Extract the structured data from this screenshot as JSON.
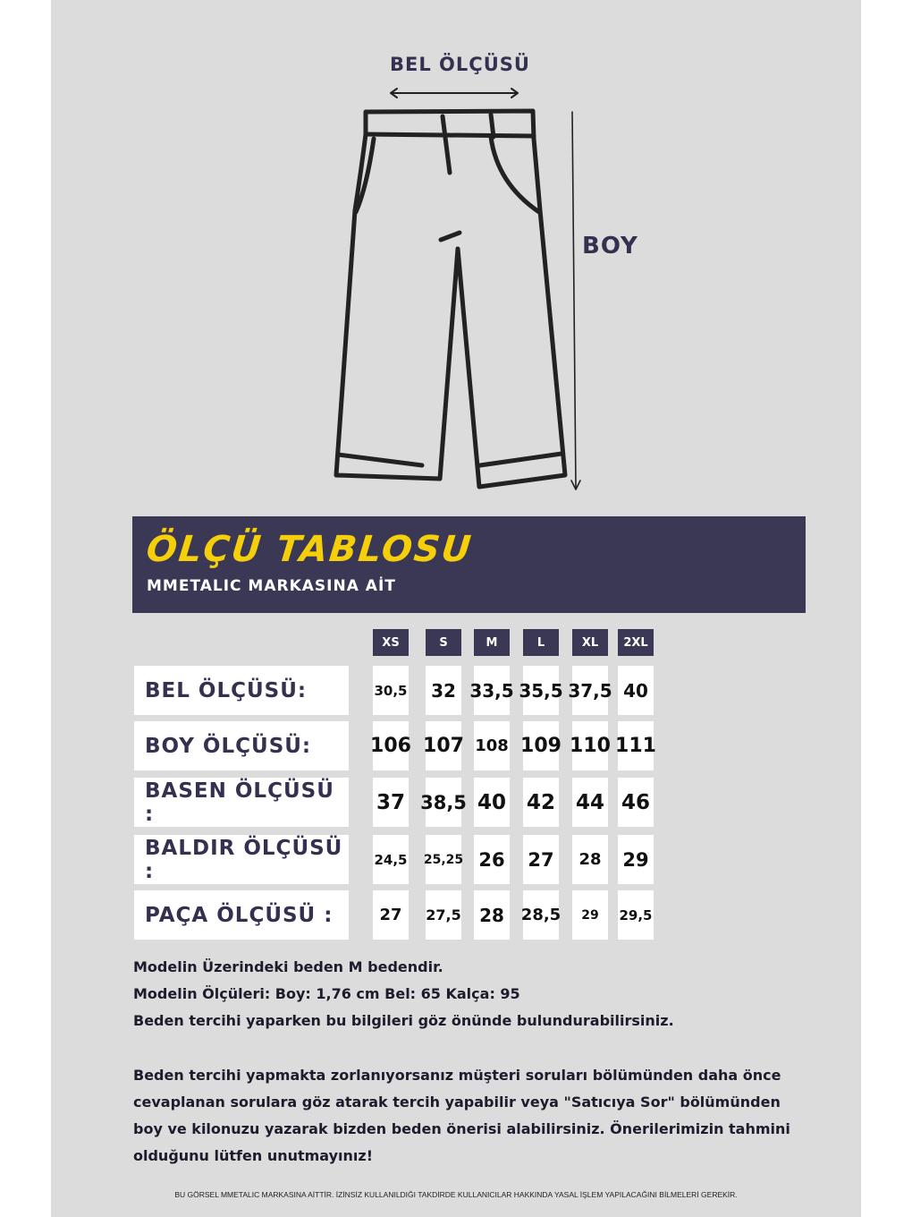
{
  "diagram": {
    "waist_label": "BEL ÖLÇÜSÜ",
    "length_label": "BOY"
  },
  "header": {
    "title": "ÖLÇÜ TABLOSU",
    "subtitle": "MMETALIC MARKASINA AİT"
  },
  "colors": {
    "accent": "#3b3856",
    "title": "#f5cf0a",
    "background": "#dcdcdc"
  },
  "table": {
    "sizes": [
      "XS",
      "S",
      "M",
      "L",
      "XL",
      "2XL"
    ],
    "rows": [
      {
        "label": "BEL ÖLÇÜSÜ:",
        "values": [
          "30,5",
          "32",
          "33,5",
          "35,5",
          "37,5",
          "40"
        ]
      },
      {
        "label": "BOY ÖLÇÜSÜ:",
        "values": [
          "106",
          "107",
          "108",
          "109",
          "110",
          "111"
        ]
      },
      {
        "label": "BASEN ÖLÇÜSÜ :",
        "values": [
          "37",
          "38,5",
          "40",
          "42",
          "44",
          "46"
        ]
      },
      {
        "label": "BALDIR ÖLÇÜSÜ :",
        "values": [
          "24,5",
          "25,25",
          "26",
          "27",
          "28",
          "29"
        ]
      },
      {
        "label": "PAÇA ÖLÇÜSÜ :",
        "values": [
          "27",
          "27,5",
          "28",
          "28,5",
          "29",
          "29,5"
        ]
      }
    ]
  },
  "notes": {
    "line1": "Modelin Üzerindeki beden M bedendir.",
    "line2": "Modelin Ölçüleri: Boy: 1,76 cm Bel: 65 Kalça: 95",
    "line3": "Beden tercihi yaparken bu bilgileri göz önünde bulundurabilirsiniz.",
    "paragraph": "Beden tercihi yapmakta zorlanıyorsanız müşteri soruları bölümünden daha önce cevaplanan sorulara göz atarak tercih yapabilir veya \"Satıcıya Sor\" bölümünden boy ve kilonuzu yazarak bizden beden önerisi alabilirsiniz. Önerilerimizin tahmini olduğunu lütfen unutmayınız!"
  },
  "footer": "BU GÖRSEL MMETALIC MARKASINA AİTTİR. İZİNSİZ KULLANILDIĞI TAKDİRDE KULLANICILAR HAKKINDA YASAL İŞLEM YAPILACAĞINI BİLMELERİ GEREKİR."
}
